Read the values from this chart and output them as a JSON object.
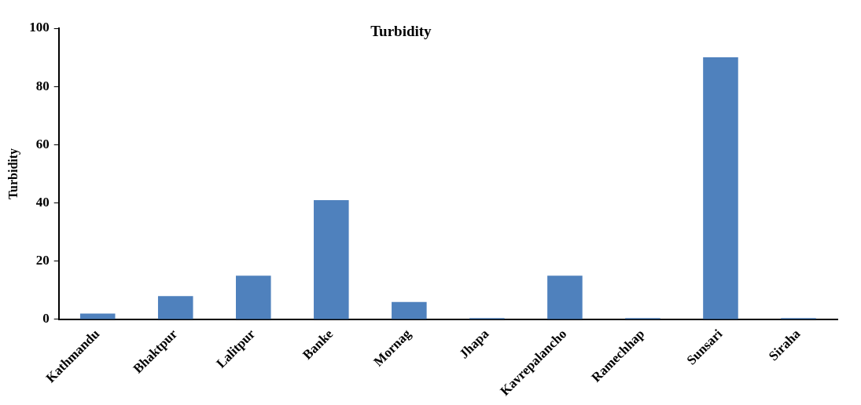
{
  "chart_data": {
    "type": "bar",
    "title": "Turbidity",
    "ylabel": "Turbidity",
    "categories": [
      "Kathmandu",
      "Bhaktpur",
      "Lalitpur",
      "Banke",
      "Mornag",
      "Jhapa",
      "Kavrepalancho",
      "Ramechhap",
      "Sunsari",
      "Siraha"
    ],
    "values": [
      2,
      8,
      15,
      41,
      6,
      0.5,
      15,
      0.5,
      90,
      0.5
    ],
    "color": "#4f81bd",
    "ylim": [
      0,
      100
    ],
    "yticks": [
      0,
      20,
      40,
      60,
      80,
      100
    ],
    "grid": false,
    "legend": false
  }
}
